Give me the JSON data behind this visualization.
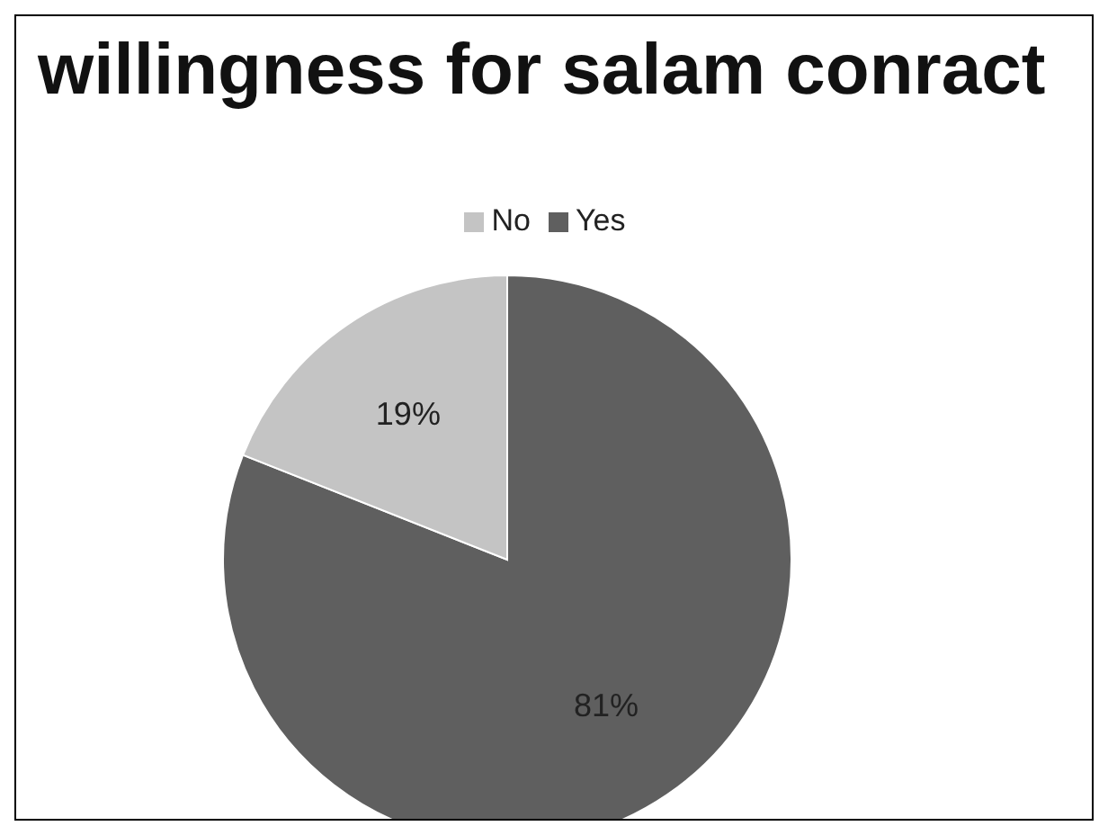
{
  "chart_data": {
    "type": "pie",
    "title": "willingness for salam conract",
    "categories": [
      "Yes",
      "No"
    ],
    "values": [
      81,
      19
    ],
    "value_labels": [
      "81%",
      "19%"
    ],
    "colors": [
      "#5f5f5f",
      "#c4c4c4"
    ],
    "legend": "top"
  }
}
